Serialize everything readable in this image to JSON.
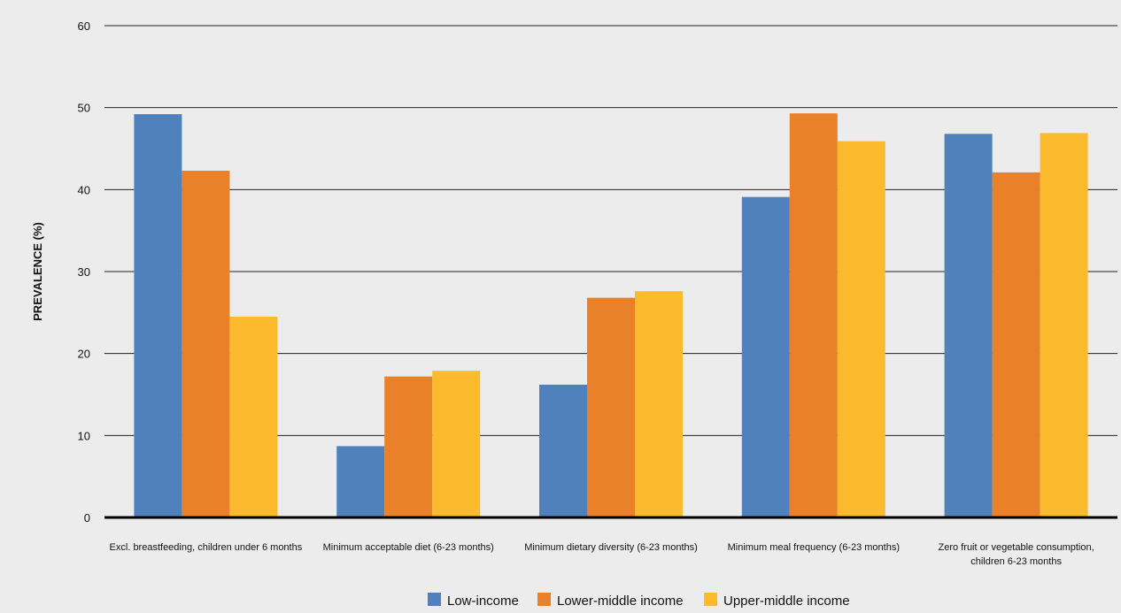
{
  "chart_data": {
    "type": "bar",
    "title": "",
    "xlabel": "",
    "ylabel": "PREVALENCE (%)",
    "ylim": [
      0,
      60
    ],
    "yticks": [
      0,
      10,
      20,
      30,
      40,
      50,
      60
    ],
    "grid": true,
    "legend_position": "bottom",
    "categories": [
      [
        "Excl. breastfeeding, children under 6 months"
      ],
      [
        "Minimum acceptable diet (6-23 months)"
      ],
      [
        "Minimum dietary diversity (6-23 months)"
      ],
      [
        "Minimum meal frequency (6-23 months)"
      ],
      [
        "Zero fruit or vegetable consumption,",
        "children 6-23 months"
      ]
    ],
    "series": [
      {
        "name": "Low-income",
        "color": "#4f81bd",
        "values": [
          49.2,
          8.7,
          16.2,
          39.1,
          46.8
        ]
      },
      {
        "name": "Lower-middle income",
        "color": "#e8812a",
        "values": [
          42.3,
          17.2,
          26.8,
          49.3,
          42.1
        ]
      },
      {
        "name": "Upper-middle income",
        "color": "#fbbb2d",
        "values": [
          24.5,
          17.9,
          27.6,
          45.9,
          46.9
        ]
      }
    ]
  }
}
